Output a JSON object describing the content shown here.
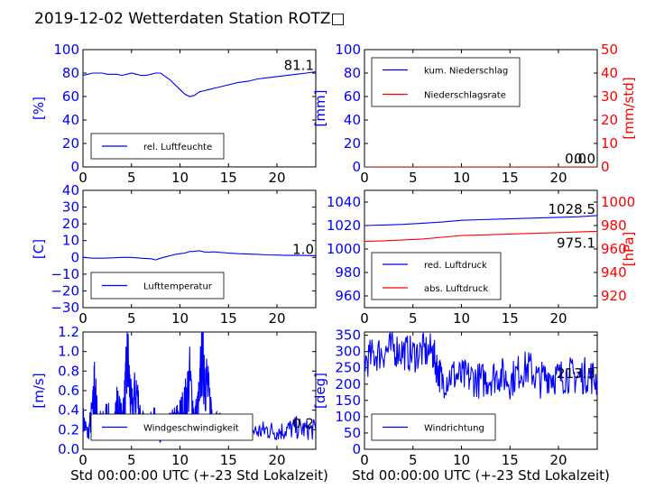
{
  "figure": {
    "title": "2019-12-02 Wetterdaten Station ROTZ□"
  },
  "colors": {
    "blue": "#0000ff",
    "red": "#ff0000",
    "black": "#000000"
  },
  "chart_data": [
    {
      "type": "line",
      "panel": "humidity",
      "ylabel": "[%]",
      "xlim": [
        0,
        24
      ],
      "ylim": [
        0,
        100
      ],
      "xticks": [
        "0",
        "5",
        "10",
        "15",
        "20"
      ],
      "yticks": [
        "0",
        "20",
        "40",
        "60",
        "80",
        "100"
      ],
      "last_value": "81.1",
      "legend_position": "lower-left",
      "series": [
        {
          "name": "rel. Luftfeuchte",
          "color": "#0000ff",
          "x": [
            0,
            0.5,
            1,
            1.5,
            2,
            2.5,
            3,
            3.5,
            4,
            4.5,
            5,
            5.5,
            6,
            6.5,
            7,
            7.5,
            8,
            8.5,
            9,
            9.5,
            10,
            10.5,
            11,
            11.5,
            12,
            12.5,
            13,
            13.5,
            14,
            15,
            16,
            17,
            18,
            19,
            20,
            21,
            22,
            23,
            24
          ],
          "y": [
            78,
            79,
            80,
            80,
            80,
            79,
            79,
            79,
            78,
            79,
            80,
            79,
            78,
            78,
            79,
            80,
            80,
            77,
            74,
            70,
            66,
            62,
            60,
            61,
            64,
            65,
            66,
            67,
            68,
            70,
            72,
            73,
            75,
            76,
            77,
            78,
            79,
            80,
            81.1
          ]
        }
      ]
    },
    {
      "type": "line",
      "panel": "precipitation",
      "ylabel": "[mm]",
      "ylabel_right": "[mm/std]",
      "xlim": [
        0,
        24
      ],
      "ylim": [
        0,
        100
      ],
      "ylim_right": [
        0,
        50
      ],
      "xticks": [
        "0",
        "5",
        "10",
        "15",
        "20"
      ],
      "yticks": [
        "0",
        "20",
        "40",
        "60",
        "80",
        "100"
      ],
      "yticks_right": [
        "0",
        "10",
        "20",
        "30",
        "40",
        "50"
      ],
      "last_value": "0.0",
      "last_value_right": "0.0",
      "legend_position": "upper-left",
      "series": [
        {
          "name": "kum. Niederschlag",
          "color": "#0000ff",
          "axis": "left",
          "x": [
            0,
            24
          ],
          "y": [
            0,
            0
          ]
        },
        {
          "name": "Niederschlagsrate",
          "color": "#ff0000",
          "axis": "right",
          "x": [
            0,
            24
          ],
          "y": [
            0,
            0
          ]
        }
      ]
    },
    {
      "type": "line",
      "panel": "temperature",
      "ylabel": "[C]",
      "xlim": [
        0,
        24
      ],
      "ylim": [
        -30,
        40
      ],
      "xticks": [
        "0",
        "5",
        "10",
        "15",
        "20"
      ],
      "yticks": [
        "−30",
        "−20",
        "−10",
        "0",
        "10",
        "20",
        "30",
        "40"
      ],
      "last_value": "1.0",
      "legend_position": "lower-left",
      "series": [
        {
          "name": "Lufttemperatur",
          "color": "#0000ff",
          "x": [
            0,
            1,
            2,
            3,
            4,
            5,
            6,
            7,
            7.5,
            8,
            8.5,
            9,
            9.5,
            10,
            10.5,
            11,
            11.5,
            12,
            12.5,
            13,
            13.5,
            14,
            15,
            16,
            17,
            18,
            19,
            20,
            21,
            22,
            23,
            24
          ],
          "y": [
            0,
            -0.5,
            -0.5,
            -0.3,
            0,
            0,
            -0.5,
            -0.8,
            -1.5,
            -0.5,
            0.3,
            1,
            1.7,
            2.2,
            2.6,
            3.5,
            3.6,
            4,
            3.2,
            3.1,
            3.3,
            3,
            2.6,
            2.2,
            2,
            1.8,
            1.5,
            1.4,
            1.2,
            1.3,
            1.1,
            1.0
          ]
        }
      ]
    },
    {
      "type": "line",
      "panel": "pressure",
      "ylabel_right": "[hPa]",
      "xlim": [
        0,
        24
      ],
      "ylim": [
        950,
        1050
      ],
      "ylim_right": [
        910,
        1010
      ],
      "xticks": [
        "0",
        "5",
        "10",
        "15",
        "20"
      ],
      "yticks": [
        "960",
        "980",
        "1000",
        "1020",
        "1040"
      ],
      "yticks_right": [
        "920",
        "940",
        "960",
        "980",
        "1000"
      ],
      "last_value": "1028.5",
      "last_value_right": "975.1",
      "legend_position": "lower-left",
      "series": [
        {
          "name": "red. Luftdruck",
          "color": "#0000ff",
          "axis": "left",
          "x": [
            0,
            2,
            4,
            6,
            8,
            10,
            12,
            14,
            16,
            18,
            20,
            22,
            24
          ],
          "y": [
            1020,
            1020.5,
            1021,
            1022,
            1023,
            1024.5,
            1025,
            1025.5,
            1026,
            1026.5,
            1027,
            1027.5,
            1028.5
          ]
        },
        {
          "name": "abs. Luftdruck",
          "color": "#ff0000",
          "axis": "right",
          "x": [
            0,
            2,
            4,
            6,
            8,
            10,
            12,
            14,
            16,
            18,
            20,
            22,
            24
          ],
          "y": [
            966.5,
            967,
            967.8,
            968.5,
            970,
            971.5,
            972,
            972.5,
            973,
            973.5,
            974,
            974.5,
            975.1
          ]
        }
      ]
    },
    {
      "type": "line",
      "panel": "windspeed",
      "ylabel": "[m/s]",
      "xlabel": "Std 00:00:00 UTC (+-23 Std Lokalzeit)",
      "xlim": [
        0,
        24
      ],
      "ylim": [
        0,
        1.2
      ],
      "xticks": [
        "0",
        "5",
        "10",
        "15",
        "20"
      ],
      "yticks": [
        "0.0",
        "0.2",
        "0.4",
        "0.6",
        "0.8",
        "1.0",
        "1.2"
      ],
      "last_value": "0.2",
      "legend_position": "lower-center",
      "series": [
        {
          "name": "Windgeschwindigkeit",
          "color": "#0000ff",
          "noise": true,
          "x": [
            0,
            0.5,
            1,
            1.2,
            1.5,
            2,
            2.5,
            3,
            3.5,
            4,
            4.3,
            4.6,
            5,
            5.5,
            6,
            6.5,
            7,
            7.5,
            8,
            8.5,
            9,
            9.5,
            10,
            10.5,
            11,
            11.5,
            12,
            12.3,
            12.6,
            13,
            13.5,
            14,
            15,
            16,
            17,
            18,
            19,
            20,
            21,
            22,
            23,
            24
          ],
          "y": [
            0.3,
            0.15,
            0.4,
            0.65,
            0.3,
            0.25,
            0.35,
            0.2,
            0.45,
            0.3,
            0.5,
            0.9,
            0.4,
            0.6,
            0.3,
            0.2,
            0.25,
            0.3,
            0.15,
            0.2,
            0.25,
            0.3,
            0.35,
            0.45,
            0.7,
            0.3,
            0.5,
            1.1,
            0.8,
            0.5,
            0.3,
            0.25,
            0.2,
            0.15,
            0.2,
            0.18,
            0.2,
            0.18,
            0.2,
            0.22,
            0.2,
            0.2
          ]
        }
      ]
    },
    {
      "type": "line",
      "panel": "winddirection",
      "ylabel": "[deg]",
      "xlabel": "Std 00:00:00 UTC (+-23 Std Lokalzeit)",
      "xlim": [
        0,
        24
      ],
      "ylim": [
        0,
        360
      ],
      "xticks": [
        "0",
        "5",
        "10",
        "15",
        "20"
      ],
      "yticks": [
        "0",
        "50",
        "100",
        "150",
        "200",
        "250",
        "300",
        "350"
      ],
      "last_value": "213.3",
      "legend_position": "lower-left",
      "series": [
        {
          "name": "Windrichtung",
          "color": "#0000ff",
          "noise": true,
          "x": [
            0,
            1,
            2,
            3,
            4,
            5,
            6,
            7,
            7.5,
            8,
            9,
            10,
            11,
            12,
            13,
            14,
            15,
            16,
            17,
            18,
            19,
            20,
            21,
            22,
            23,
            24
          ],
          "y": [
            270,
            290,
            300,
            310,
            300,
            290,
            300,
            300,
            250,
            210,
            230,
            220,
            220,
            210,
            220,
            230,
            210,
            240,
            250,
            210,
            230,
            220,
            230,
            220,
            230,
            213
          ]
        }
      ]
    }
  ]
}
